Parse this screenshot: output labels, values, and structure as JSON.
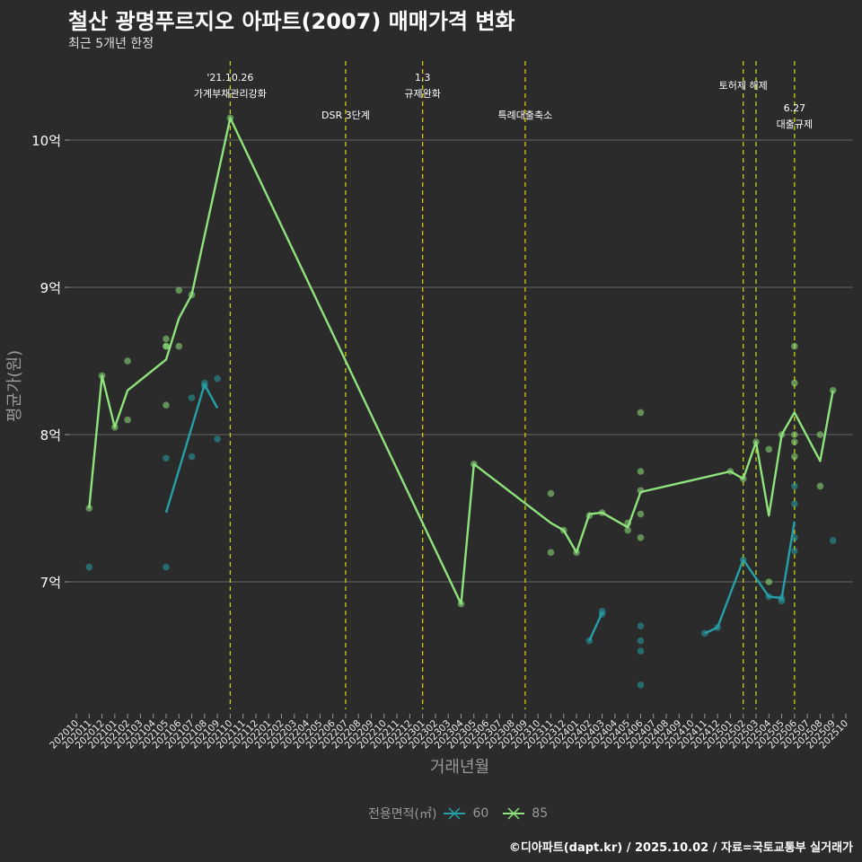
{
  "title": "철산 광명푸르지오 아파트(2007) 매매가격 변화",
  "subtitle": "최근 5개년 한정",
  "caption": "©디아파트(dapt.kr) / 2025.10.02 / 자료=국토교통부 실거래가",
  "legend": {
    "title": "전용면적(㎡)",
    "items": [
      {
        "label": "60",
        "color": "#26a0a8"
      },
      {
        "label": "85",
        "color": "#8fe37c"
      }
    ]
  },
  "chart_data": {
    "type": "line",
    "title": "철산 광명푸르지오 아파트(2007) 매매가격 변화",
    "xlabel": "거래년월",
    "ylabel": "평균가(원)",
    "ylim": [
      6.15,
      10.3
    ],
    "y_unit": "억",
    "yticks": [
      {
        "value": 7,
        "label": "7억"
      },
      {
        "value": 8,
        "label": "8억"
      },
      {
        "value": 9,
        "label": "9억"
      },
      {
        "value": 10,
        "label": "10억"
      }
    ],
    "grid": true,
    "legend_position": "bottom",
    "x": [
      "202010",
      "202011",
      "202012",
      "202101",
      "202102",
      "202103",
      "202104",
      "202105",
      "202106",
      "202107",
      "202108",
      "202109",
      "202110",
      "202111",
      "202112",
      "202201",
      "202202",
      "202203",
      "202204",
      "202205",
      "202206",
      "202207",
      "202208",
      "202209",
      "202210",
      "202211",
      "202212",
      "202301",
      "202302",
      "202303",
      "202304",
      "202305",
      "202306",
      "202307",
      "202308",
      "202309",
      "202310",
      "202311",
      "202312",
      "202401",
      "202402",
      "202403",
      "202404",
      "202405",
      "202406",
      "202407",
      "202408",
      "202409",
      "202410",
      "202411",
      "202412",
      "202501",
      "202502",
      "202503",
      "202504",
      "202505",
      "202506",
      "202507",
      "202508",
      "202509",
      "202510"
    ],
    "events": [
      {
        "month": "202110",
        "lines": [
          "'21.10.26",
          "가계부채관리강화"
        ]
      },
      {
        "month": "202207",
        "lines": [
          "DSR 3단계"
        ]
      },
      {
        "month": "202301",
        "lines": [
          "1.3",
          "규제완화"
        ]
      },
      {
        "month": "202309",
        "lines": [
          "특례대출축소"
        ]
      },
      {
        "month": "202502",
        "lines": [
          "토허제 해제"
        ]
      },
      {
        "month": "202503",
        "lines": []
      },
      {
        "month": "202506",
        "lines": [
          "6.27",
          "대출규제"
        ]
      }
    ],
    "series": [
      {
        "name": "60",
        "color": "#26a0a8",
        "line_segments": [
          [
            [
              "202105",
              7.47
            ],
            [
              "202108",
              8.34
            ],
            [
              "202109",
              8.18
            ]
          ],
          [
            [
              "202402",
              6.6
            ],
            [
              "202403",
              6.79
            ]
          ],
          [
            [
              "202411",
              6.65
            ],
            [
              "202412",
              6.69
            ],
            [
              "202502",
              7.15
            ],
            [
              "202504",
              6.9
            ],
            [
              "202505",
              6.89
            ],
            [
              "202506",
              7.41
            ]
          ]
        ],
        "points": [
          [
            "202011",
            7.1
          ],
          [
            "202105",
            7.84
          ],
          [
            "202105",
            7.1
          ],
          [
            "202107",
            8.25
          ],
          [
            "202107",
            7.85
          ],
          [
            "202108",
            8.35
          ],
          [
            "202108",
            8.33
          ],
          [
            "202109",
            8.38
          ],
          [
            "202109",
            7.97
          ],
          [
            "202402",
            6.6
          ],
          [
            "202403",
            6.78
          ],
          [
            "202403",
            6.8
          ],
          [
            "202406",
            6.7
          ],
          [
            "202406",
            6.6
          ],
          [
            "202406",
            6.53
          ],
          [
            "202406",
            6.3
          ],
          [
            "202411",
            6.65
          ],
          [
            "202412",
            6.69
          ],
          [
            "202502",
            7.15
          ],
          [
            "202504",
            6.9
          ],
          [
            "202505",
            6.89
          ],
          [
            "202505",
            6.87
          ],
          [
            "202506",
            7.65
          ],
          [
            "202506",
            7.53
          ],
          [
            "202506",
            7.3
          ],
          [
            "202506",
            7.21
          ],
          [
            "202509",
            7.28
          ]
        ]
      },
      {
        "name": "85",
        "color": "#8fe37c",
        "line_segments": [
          [
            [
              "202011",
              7.5
            ],
            [
              "202012",
              8.4
            ],
            [
              "202101",
              8.05
            ],
            [
              "202102",
              8.3
            ],
            [
              "202105",
              8.51
            ],
            [
              "202106",
              8.79
            ],
            [
              "202107",
              8.95
            ],
            [
              "202110",
              10.15
            ],
            [
              "202304",
              6.85
            ],
            [
              "202305",
              7.8
            ],
            [
              "202311",
              7.4
            ],
            [
              "202312",
              7.35
            ],
            [
              "202401",
              7.2
            ],
            [
              "202402",
              7.46
            ],
            [
              "202403",
              7.47
            ],
            [
              "202405",
              7.37
            ],
            [
              "202406",
              7.61
            ],
            [
              "202501",
              7.75
            ],
            [
              "202502",
              7.7
            ],
            [
              "202503",
              7.95
            ],
            [
              "202504",
              7.45
            ],
            [
              "202505",
              8.0
            ],
            [
              "202506",
              8.15
            ],
            [
              "202508",
              7.82
            ],
            [
              "202509",
              8.3
            ]
          ]
        ],
        "points": [
          [
            "202011",
            7.5
          ],
          [
            "202012",
            8.4
          ],
          [
            "202101",
            8.05
          ],
          [
            "202102",
            8.5
          ],
          [
            "202102",
            8.1
          ],
          [
            "202105",
            8.65
          ],
          [
            "202105",
            8.6
          ],
          [
            "202105",
            8.6
          ],
          [
            "202105",
            8.2
          ],
          [
            "202106",
            8.98
          ],
          [
            "202106",
            8.6
          ],
          [
            "202107",
            8.95
          ],
          [
            "202110",
            10.15
          ],
          [
            "202304",
            6.85
          ],
          [
            "202305",
            7.8
          ],
          [
            "202311",
            7.6
          ],
          [
            "202311",
            7.2
          ],
          [
            "202312",
            7.35
          ],
          [
            "202401",
            7.2
          ],
          [
            "202402",
            7.45
          ],
          [
            "202403",
            7.47
          ],
          [
            "202405",
            7.4
          ],
          [
            "202405",
            7.35
          ],
          [
            "202406",
            8.15
          ],
          [
            "202406",
            7.75
          ],
          [
            "202406",
            7.62
          ],
          [
            "202406",
            7.46
          ],
          [
            "202406",
            7.3
          ],
          [
            "202501",
            7.75
          ],
          [
            "202502",
            7.7
          ],
          [
            "202503",
            7.95
          ],
          [
            "202504",
            7.9
          ],
          [
            "202504",
            7.0
          ],
          [
            "202505",
            8.0
          ],
          [
            "202506",
            8.6
          ],
          [
            "202506",
            8.35
          ],
          [
            "202506",
            8.0
          ],
          [
            "202506",
            7.95
          ],
          [
            "202506",
            7.85
          ],
          [
            "202508",
            8.0
          ],
          [
            "202508",
            7.65
          ],
          [
            "202509",
            8.3
          ]
        ]
      }
    ]
  }
}
